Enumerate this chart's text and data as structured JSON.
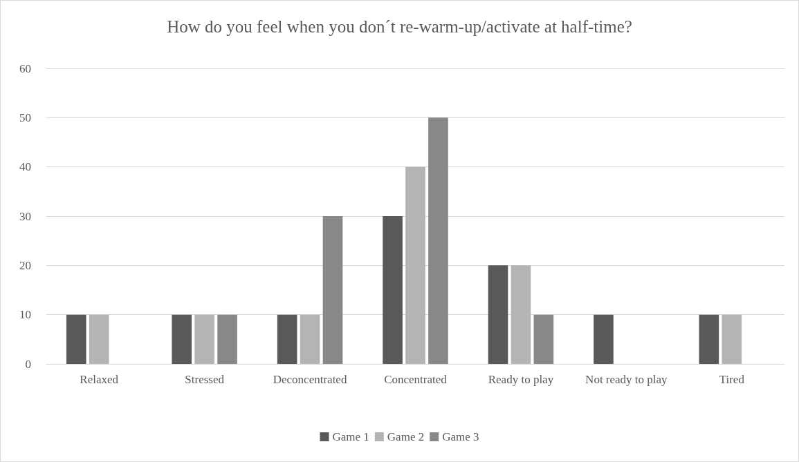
{
  "chart_data": {
    "type": "bar",
    "title": "How do you feel when you don´t re-warm-up/activate at half-time?",
    "categories": [
      "Relaxed",
      "Stressed",
      "Deconcentrated",
      "Concentrated",
      "Ready to play",
      "Not ready to play",
      "Tired"
    ],
    "series": [
      {
        "name": "Game 1",
        "color": "#595959",
        "values": [
          10,
          10,
          10,
          30,
          20,
          10,
          10
        ]
      },
      {
        "name": "Game 2",
        "color": "#b4b4b4",
        "values": [
          10,
          10,
          10,
          40,
          20,
          0,
          10
        ]
      },
      {
        "name": "Game 3",
        "color": "#888888",
        "values": [
          0,
          10,
          30,
          50,
          10,
          0,
          0
        ]
      }
    ],
    "ylim": [
      0,
      60
    ],
    "yticks": [
      0,
      10,
      20,
      30,
      40,
      50,
      60
    ],
    "grid": "y",
    "legend": "bottom"
  }
}
